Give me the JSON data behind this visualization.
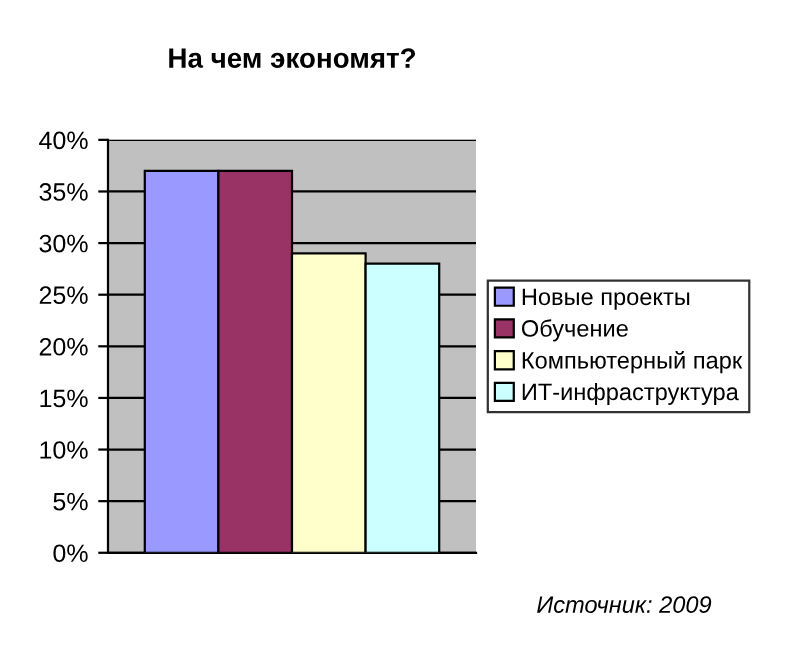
{
  "chart_data": {
    "type": "bar",
    "title": "На чем экономят?",
    "categories": [
      null
    ],
    "series": [
      {
        "name": "Новые проекты",
        "color": "#9999ff",
        "values": [
          37
        ]
      },
      {
        "name": "Обучение",
        "color": "#993366",
        "values": [
          37
        ]
      },
      {
        "name": "Компьютерный парк",
        "color": "#ffffcc",
        "values": [
          29
        ]
      },
      {
        "name": "ИТ-инфраструктура",
        "color": "#ccffff",
        "values": [
          28
        ]
      }
    ],
    "ylim": [
      0,
      40
    ],
    "yticks": [
      {
        "value": 0,
        "label": "0%"
      },
      {
        "value": 5,
        "label": "5%"
      },
      {
        "value": 10,
        "label": "10%"
      },
      {
        "value": 15,
        "label": "15%"
      },
      {
        "value": 20,
        "label": "20%"
      },
      {
        "value": 25,
        "label": "25%"
      },
      {
        "value": 30,
        "label": "30%"
      },
      {
        "value": 35,
        "label": "35%"
      },
      {
        "value": 40,
        "label": "40%"
      }
    ],
    "grid": "y",
    "legend": "right",
    "annotations": [
      "Источник: 2009"
    ]
  }
}
